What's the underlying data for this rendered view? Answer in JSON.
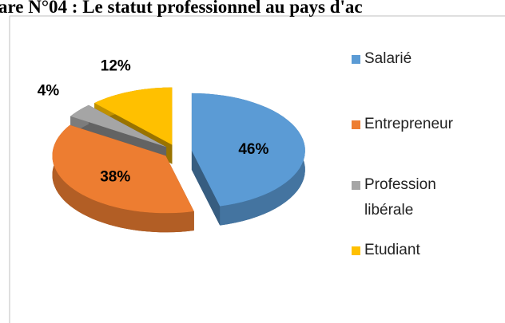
{
  "chart_data": {
    "type": "pie",
    "title": "are N°04 : Le statut professionnel au pays d'ac",
    "categories": [
      "Salarié",
      "Entrepreneur",
      "Profession libérale",
      "Etudiant"
    ],
    "values": [
      46,
      38,
      4,
      12
    ],
    "value_labels": [
      "46%",
      "38%",
      "4%",
      "12%"
    ],
    "colors": [
      "#5b9bd5",
      "#ed7d31",
      "#a5a5a5",
      "#ffc000"
    ],
    "legend": "right"
  }
}
